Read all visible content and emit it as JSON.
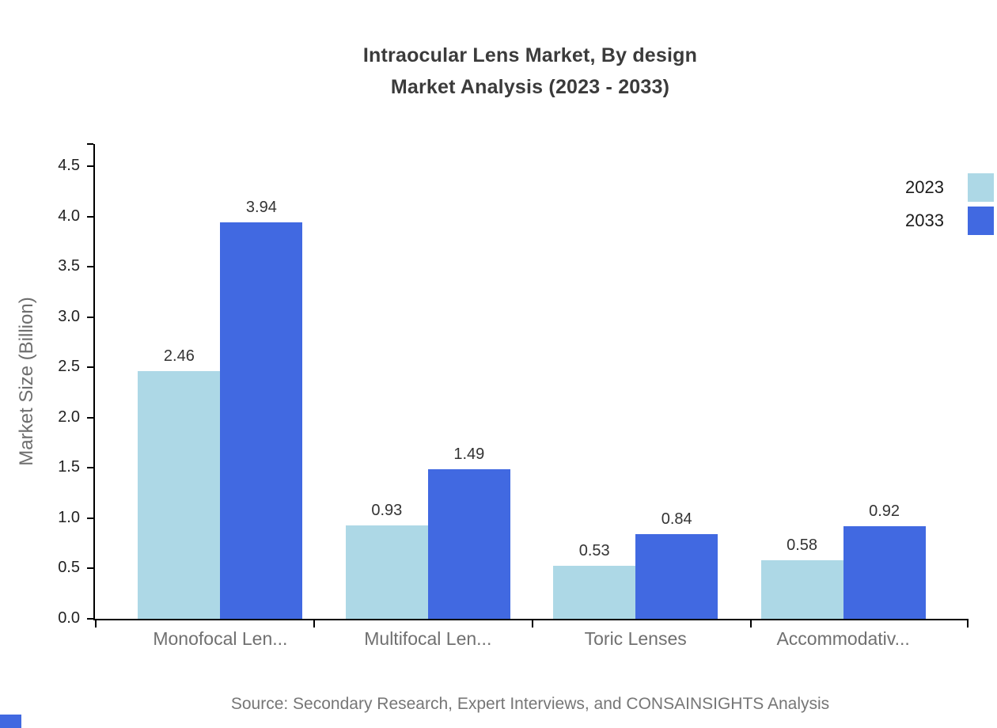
{
  "title": {
    "line1": "Intraocular Lens Market, By design",
    "line2": "Market Analysis (2023 - 2033)"
  },
  "source": "Source: Secondary Research, Expert Interviews, and CONSAINSIGHTS Analysis",
  "colors": {
    "series_2023": "#add8e6",
    "series_2033": "#4169e1",
    "axis_line": "#000000",
    "title_text": "#3b3b3b",
    "category_text": "#707070",
    "value_label_text": "#333333",
    "source_text": "#767676",
    "corner_accent": "#4169e1"
  },
  "legend": {
    "items": [
      {
        "label": "2023",
        "color": "#add8e6"
      },
      {
        "label": "2033",
        "color": "#4169e1"
      }
    ]
  },
  "chart_data": {
    "type": "bar",
    "title": "Intraocular Lens Market, By design — Market Analysis (2023 - 2033)",
    "categories": [
      "Monofocal Len...",
      "Multifocal Len...",
      "Toric Lenses",
      "Accommodativ..."
    ],
    "series": [
      {
        "name": "2023",
        "color": "#add8e6",
        "values": [
          2.46,
          0.93,
          0.53,
          0.58
        ]
      },
      {
        "name": "2033",
        "color": "#4169e1",
        "values": [
          3.94,
          1.49,
          0.84,
          0.92
        ]
      }
    ],
    "xlabel": "",
    "ylabel": "Market Size (Billion)",
    "ylim": [
      0,
      4.72
    ],
    "yticks": [
      0.0,
      0.5,
      1.0,
      1.5,
      2.0,
      2.5,
      3.0,
      3.5,
      4.0,
      4.5
    ],
    "ytick_format": "one-decimal",
    "value_labels_shown": true,
    "grid": false,
    "legend_position": "top-right"
  }
}
